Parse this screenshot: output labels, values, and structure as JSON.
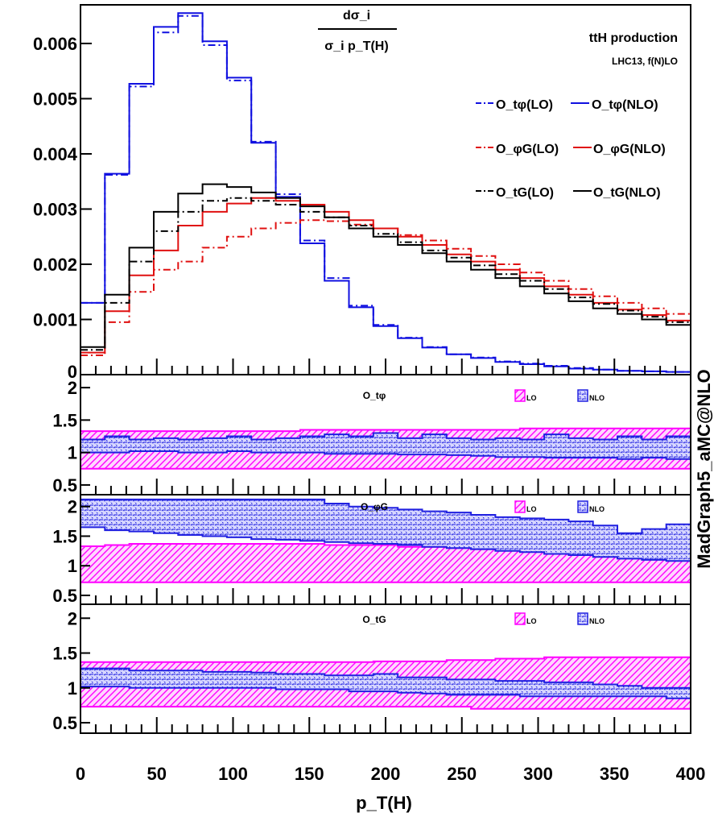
{
  "chart_data": [
    {
      "type": "line",
      "panel": "main",
      "title_num": "dσ_i",
      "title_den": "σ_i p_T(H)",
      "info_line1": "ttH production",
      "info_line2": "LHC13, f(N)LO",
      "xlabel": "p_T(H)",
      "xlim": [
        0,
        400
      ],
      "ylim": [
        0,
        0.0067
      ],
      "x_ticks": [
        0,
        50,
        100,
        150,
        200,
        250,
        300,
        350,
        400
      ],
      "y_ticks": [
        0.001,
        0.002,
        0.003,
        0.004,
        0.005,
        0.006
      ],
      "y_tick_labels": [
        "0.001",
        "0.002",
        "0.003",
        "0.004",
        "0.005",
        "0.006"
      ],
      "y_zero_label": "0",
      "bin_edges": [
        0,
        16,
        32,
        48,
        64,
        80,
        96,
        112,
        128,
        144,
        160,
        176,
        192,
        208,
        224,
        240,
        256,
        272,
        288,
        304,
        320,
        336,
        352,
        368,
        384,
        400
      ],
      "legend": [
        [
          "O_tφ(LO)",
          "O_tφ(NLO)"
        ],
        [
          "O_φG(LO)",
          "O_φG(NLO)"
        ],
        [
          "O_tG(LO)",
          "O_tG(NLO)"
        ]
      ],
      "series": [
        {
          "name": "O_tφ(LO)",
          "color": "#1010e0",
          "dash": true,
          "values": [
            0.0013,
            0.00362,
            0.00522,
            0.0062,
            0.0065,
            0.00597,
            0.00533,
            0.00422,
            0.00327,
            0.00243,
            0.00175,
            0.00125,
            0.0009,
            0.00067,
            0.0005,
            0.00037,
            0.00031,
            0.00024,
            0.0002,
            0.00016,
            0.00012,
            9e-05,
            7e-05,
            6e-05,
            5e-05
          ]
        },
        {
          "name": "O_tφ(NLO)",
          "color": "#1010e0",
          "dash": false,
          "values": [
            0.0013,
            0.00364,
            0.00527,
            0.0063,
            0.00655,
            0.00604,
            0.00538,
            0.0042,
            0.00322,
            0.00238,
            0.0017,
            0.00122,
            0.00088,
            0.00066,
            0.00049,
            0.00037,
            0.0003,
            0.00023,
            0.00019,
            0.00015,
            0.00011,
            9e-05,
            7e-05,
            6e-05,
            5e-05
          ]
        },
        {
          "name": "O_φG(LO)",
          "color": "#e01010",
          "dash": true,
          "values": [
            0.00035,
            0.00095,
            0.0015,
            0.0019,
            0.00205,
            0.0023,
            0.0025,
            0.00265,
            0.00275,
            0.0028,
            0.00278,
            0.00272,
            0.00265,
            0.00253,
            0.00243,
            0.00228,
            0.00215,
            0.002,
            0.00185,
            0.0017,
            0.00155,
            0.00142,
            0.0013,
            0.0012,
            0.0011
          ]
        },
        {
          "name": "O_φG(NLO)",
          "color": "#e01010",
          "dash": false,
          "values": [
            0.0004,
            0.00115,
            0.0018,
            0.00225,
            0.0027,
            0.00295,
            0.0031,
            0.0032,
            0.00315,
            0.00308,
            0.00295,
            0.0028,
            0.00265,
            0.0025,
            0.00235,
            0.00218,
            0.00205,
            0.0019,
            0.00175,
            0.0016,
            0.00145,
            0.0013,
            0.00118,
            0.00108,
            0.00098
          ]
        },
        {
          "name": "O_tG(LO)",
          "color": "#000000",
          "dash": true,
          "values": [
            0.00045,
            0.0013,
            0.00205,
            0.0026,
            0.00295,
            0.00315,
            0.0032,
            0.00315,
            0.00308,
            0.00295,
            0.00285,
            0.0027,
            0.00255,
            0.0024,
            0.00225,
            0.00212,
            0.00198,
            0.00182,
            0.0017,
            0.00155,
            0.0014,
            0.00128,
            0.00116,
            0.00105,
            0.00095
          ]
        },
        {
          "name": "O_tG(NLO)",
          "color": "#000000",
          "dash": false,
          "values": [
            0.0005,
            0.00145,
            0.0023,
            0.00295,
            0.00328,
            0.00345,
            0.0034,
            0.0033,
            0.0032,
            0.00305,
            0.00285,
            0.00265,
            0.0025,
            0.00235,
            0.0022,
            0.00205,
            0.0019,
            0.00175,
            0.0016,
            0.00147,
            0.00133,
            0.0012,
            0.0011,
            0.001,
            0.0009
          ]
        }
      ]
    },
    {
      "type": "area",
      "panel": "ratio_1",
      "label": "O_tφ",
      "ylim": [
        0.35,
        2.2
      ],
      "y_ticks": [
        0.5,
        1,
        1.5,
        2
      ],
      "y_tick_labels": [
        "0.5",
        "1",
        "1.5",
        "2"
      ],
      "legend": [
        "LO",
        "NLO"
      ],
      "series": [
        {
          "name": "LO",
          "color": "#ff00ff",
          "lower": [
            0.75,
            0.75,
            0.75,
            0.75,
            0.75,
            0.75,
            0.75,
            0.75,
            0.75,
            0.75,
            0.75,
            0.75,
            0.75,
            0.75,
            0.75,
            0.75,
            0.75,
            0.75,
            0.75,
            0.75,
            0.75,
            0.75,
            0.75,
            0.75,
            0.75
          ],
          "upper": [
            1.33,
            1.33,
            1.33,
            1.33,
            1.33,
            1.33,
            1.33,
            1.33,
            1.33,
            1.35,
            1.35,
            1.35,
            1.35,
            1.35,
            1.35,
            1.35,
            1.35,
            1.35,
            1.37,
            1.37,
            1.37,
            1.37,
            1.37,
            1.37,
            1.37
          ]
        },
        {
          "name": "NLO",
          "color": "#2020e0",
          "lower": [
            1.0,
            1.0,
            1.02,
            1.02,
            1.0,
            1.0,
            1.02,
            1.0,
            1.0,
            1.0,
            0.98,
            0.98,
            0.98,
            0.97,
            0.97,
            0.96,
            0.95,
            0.93,
            0.93,
            0.92,
            0.92,
            0.92,
            0.9,
            0.92,
            0.9
          ],
          "upper": [
            1.2,
            1.25,
            1.2,
            1.22,
            1.2,
            1.22,
            1.25,
            1.2,
            1.22,
            1.25,
            1.28,
            1.25,
            1.3,
            1.22,
            1.28,
            1.22,
            1.2,
            1.22,
            1.2,
            1.28,
            1.22,
            1.2,
            1.25,
            1.2,
            1.25
          ]
        }
      ]
    },
    {
      "type": "area",
      "panel": "ratio_2",
      "label": "O_φG",
      "ylim": [
        0.35,
        2.2
      ],
      "y_ticks": [
        0.5,
        1,
        1.5,
        2
      ],
      "y_tick_labels": [
        "0.5",
        "1",
        "1.5",
        "2"
      ],
      "legend": [
        "LO",
        "NLO"
      ],
      "series": [
        {
          "name": "LO",
          "color": "#ff00ff",
          "lower": [
            0.72,
            0.72,
            0.72,
            0.72,
            0.72,
            0.72,
            0.72,
            0.72,
            0.72,
            0.72,
            0.72,
            0.72,
            0.72,
            0.72,
            0.72,
            0.72,
            0.72,
            0.72,
            0.72,
            0.72,
            0.72,
            0.72,
            0.72,
            0.72,
            0.72
          ],
          "upper": [
            1.33,
            1.35,
            1.37,
            1.37,
            1.37,
            1.37,
            1.37,
            1.37,
            1.37,
            1.37,
            1.35,
            1.35,
            1.35,
            1.32,
            1.32,
            1.3,
            1.28,
            1.28,
            1.28,
            1.26,
            1.26,
            1.26,
            1.25,
            1.25,
            1.25
          ]
        },
        {
          "name": "NLO",
          "color": "#2020e0",
          "lower": [
            1.65,
            1.6,
            1.58,
            1.55,
            1.52,
            1.5,
            1.48,
            1.45,
            1.44,
            1.42,
            1.4,
            1.38,
            1.37,
            1.35,
            1.32,
            1.3,
            1.28,
            1.25,
            1.23,
            1.2,
            1.18,
            1.15,
            1.12,
            1.1,
            1.08
          ],
          " upper": [
            2.12,
            2.12,
            2.12,
            2.12,
            2.12,
            2.12,
            2.12,
            2.12,
            2.12,
            2.12,
            2.05,
            2.0,
            1.98,
            1.95,
            1.92,
            1.9,
            1.86,
            1.82,
            1.8,
            1.78,
            1.75,
            1.68,
            1.55,
            1.62,
            1.7
          ],
          "upper": [
            2.12,
            2.12,
            2.12,
            2.12,
            2.12,
            2.12,
            2.12,
            2.12,
            2.12,
            2.12,
            2.05,
            2.0,
            1.98,
            1.95,
            1.92,
            1.9,
            1.86,
            1.82,
            1.8,
            1.78,
            1.75,
            1.68,
            1.55,
            1.62,
            1.7
          ]
        }
      ]
    },
    {
      "type": "area",
      "panel": "ratio_3",
      "label": "O_tG",
      "ylim": [
        0.35,
        2.2
      ],
      "y_ticks": [
        0.5,
        1,
        1.5,
        2
      ],
      "y_tick_labels": [
        "0.5",
        "1",
        "1.5",
        "2"
      ],
      "legend": [
        "LO",
        "NLO"
      ],
      "side_label": "MadGraph5_aMC@NLO",
      "series": [
        {
          "name": "LO",
          "color": "#ff00ff",
          "lower": [
            0.73,
            0.73,
            0.73,
            0.73,
            0.73,
            0.73,
            0.73,
            0.73,
            0.73,
            0.73,
            0.73,
            0.73,
            0.73,
            0.73,
            0.73,
            0.73,
            0.7,
            0.7,
            0.7,
            0.7,
            0.7,
            0.7,
            0.7,
            0.7,
            0.7
          ],
          "upper": [
            1.37,
            1.37,
            1.37,
            1.37,
            1.37,
            1.37,
            1.37,
            1.37,
            1.37,
            1.37,
            1.37,
            1.37,
            1.38,
            1.38,
            1.38,
            1.4,
            1.4,
            1.42,
            1.42,
            1.44,
            1.44,
            1.44,
            1.44,
            1.44,
            1.44
          ]
        },
        {
          "name": "NLO",
          "color": "#2020e0",
          "lower": [
            1.02,
            1.02,
            1.0,
            1.0,
            1.0,
            1.0,
            1.0,
            1.0,
            0.98,
            0.98,
            0.98,
            0.95,
            0.95,
            0.93,
            0.92,
            0.9,
            0.9,
            0.9,
            0.88,
            0.88,
            0.88,
            0.88,
            0.88,
            0.88,
            0.85
          ],
          "upper": [
            1.28,
            1.28,
            1.25,
            1.25,
            1.25,
            1.23,
            1.23,
            1.22,
            1.2,
            1.2,
            1.18,
            1.18,
            1.2,
            1.15,
            1.15,
            1.12,
            1.12,
            1.1,
            1.1,
            1.08,
            1.08,
            1.05,
            1.03,
            1.0,
            1.0
          ]
        }
      ]
    }
  ]
}
